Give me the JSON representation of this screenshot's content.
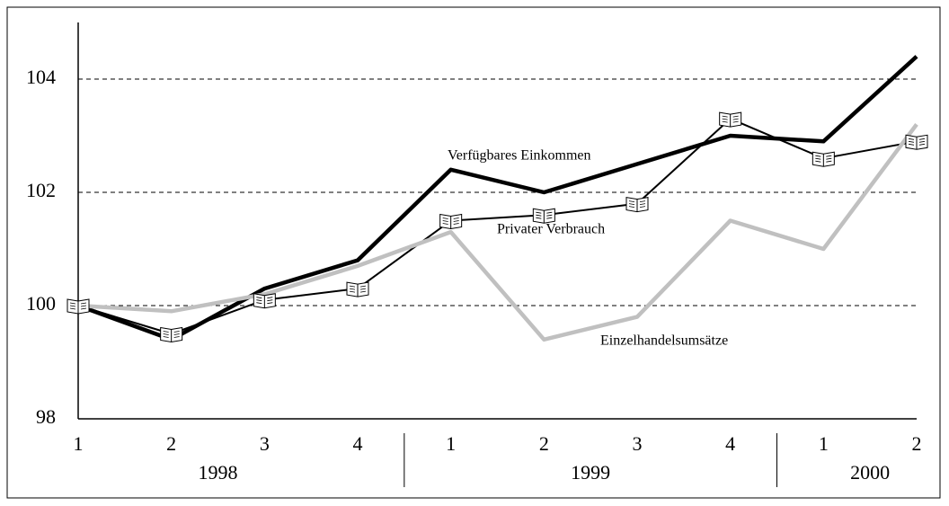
{
  "chart_data": {
    "type": "line",
    "categories": [
      "1",
      "2",
      "3",
      "4",
      "1",
      "2",
      "3",
      "4",
      "1",
      "2"
    ],
    "year_groups": [
      "1998",
      "1999",
      "2000"
    ],
    "series": [
      {
        "name": "Verfügbares Einkommen",
        "color": "#000000",
        "width": 4.5,
        "marker": false,
        "values": [
          100,
          99.4,
          100.3,
          100.8,
          102.4,
          102.0,
          102.5,
          103.0,
          102.9,
          104.4
        ]
      },
      {
        "name": "Privater Verbrauch",
        "color": "#000000",
        "width": 2,
        "marker": true,
        "values": [
          100,
          99.5,
          100.1,
          100.3,
          101.5,
          101.6,
          101.8,
          103.3,
          102.6,
          102.9
        ]
      },
      {
        "name": "Einzelhandelsumsätze",
        "color": "#c0c0c0",
        "width": 4.5,
        "marker": false,
        "values": [
          100,
          99.9,
          100.2,
          100.7,
          101.3,
          99.4,
          99.8,
          101.5,
          101.0,
          103.2
        ]
      }
    ],
    "ylim": [
      98,
      105
    ],
    "yticks": [
      98,
      100,
      102,
      104
    ],
    "grid": true
  }
}
